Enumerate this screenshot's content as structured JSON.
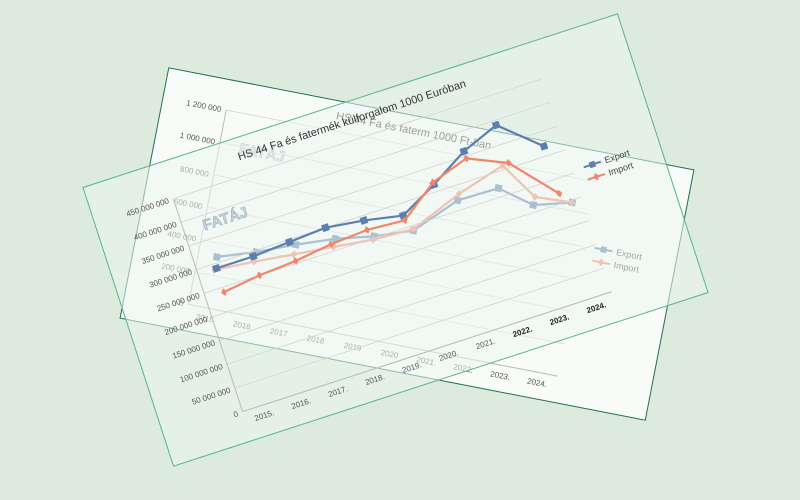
{
  "colors": {
    "export": "#5b7fae",
    "import": "#f2866c",
    "background": "#dcebdd"
  },
  "chart_data": [
    {
      "type": "line",
      "title": "HS 44 Fa és faterm 1000 Ft-ban",
      "watermark": "FATÁJ",
      "categories": [
        "2015",
        "2016",
        "2017",
        "2018",
        "2019",
        "2020",
        "2021.",
        "2022.",
        "2023.",
        "2024."
      ],
      "yticks": [
        "0",
        "200 000",
        "400 000",
        "600 000",
        "800 000",
        "1 000 000",
        "1 200 000"
      ],
      "ylim": [
        0,
        1200000
      ],
      "legend_position": "right",
      "series": [
        {
          "name": "Export",
          "values": [
            315000,
            390000,
            480000,
            560000,
            620000,
            700000,
            930000,
            1050000,
            990000,
            1050000
          ]
        },
        {
          "name": "Import",
          "values": [
            235000,
            330000,
            420000,
            510000,
            600000,
            710000,
            970000,
            1190000,
            1040000,
            1050000
          ]
        }
      ],
      "legend": [
        "Export",
        "Import"
      ]
    },
    {
      "type": "line",
      "title": "HS 44 Fa és fatermék külforgalom 1000 Euróban",
      "watermark": "FATÁJ",
      "categories": [
        "2015.",
        "2016.",
        "2017.",
        "2018.",
        "2019.",
        "2020.",
        "2021.",
        "2022.",
        "2023.",
        "2024."
      ],
      "yticks": [
        "0",
        "50 000 000",
        "100 000 000",
        "150 000 000",
        "200 000 000",
        "250 000 000",
        "300 000 000",
        "350 000 000",
        "400 000 000",
        "450 000 000"
      ],
      "ylim": [
        0,
        450000000
      ],
      "legend_position": "right",
      "series": [
        {
          "name": "Export",
          "values": [
            290000000,
            290000000,
            295000000,
            300000000,
            290000000,
            275000000,
            315000000,
            360000000,
            390000000,
            320000000
          ]
        },
        {
          "name": "Import",
          "values": [
            240000000,
            250000000,
            255000000,
            265000000,
            270000000,
            265000000,
            320000000,
            345000000,
            310000000,
            220000000
          ]
        }
      ],
      "legend": [
        "Export",
        "Import"
      ]
    }
  ]
}
